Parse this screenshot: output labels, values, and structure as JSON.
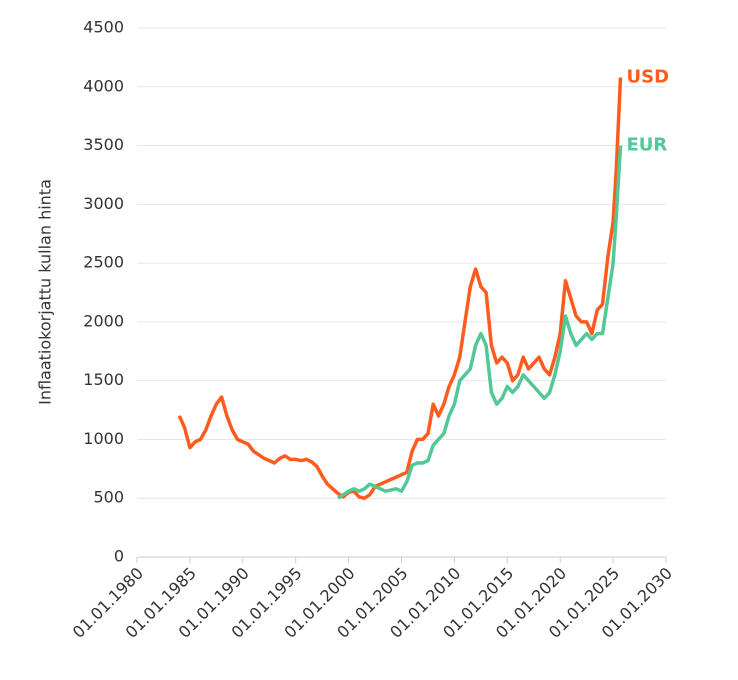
{
  "chart_data": {
    "type": "line",
    "y_label": "Inflaatiokorjattu kullan hinta",
    "x": [
      1984,
      1984.5,
      1985,
      1985.5,
      1986,
      1986.5,
      1987,
      1987.5,
      1988,
      1988.5,
      1989,
      1989.5,
      1990,
      1990.5,
      1991,
      1991.5,
      1992,
      1992.5,
      1993,
      1993.5,
      1994,
      1994.5,
      1995,
      1995.5,
      1996,
      1996.5,
      1997,
      1997.5,
      1998,
      1998.5,
      1999,
      1999.5,
      2000,
      2000.5,
      2001,
      2001.5,
      2002,
      2002.5,
      2003,
      2003.5,
      2004,
      2004.5,
      2005,
      2005.5,
      2006,
      2006.5,
      2007,
      2007.5,
      2008,
      2008.5,
      2009,
      2009.5,
      2010,
      2010.5,
      2011,
      2011.5,
      2012,
      2012.5,
      2013,
      2013.5,
      2014,
      2014.5,
      2015,
      2015.5,
      2016,
      2016.5,
      2017,
      2017.5,
      2018,
      2018.5,
      2019,
      2019.5,
      2020,
      2020.5,
      2021,
      2021.5,
      2022,
      2022.5,
      2023,
      2023.5,
      2024,
      2024.5,
      2025,
      2025.3,
      2025.7
    ],
    "series": [
      {
        "name": "USD",
        "color": "#ff5b1e",
        "values": [
          1200,
          1100,
          930,
          980,
          1000,
          1080,
          1200,
          1300,
          1360,
          1200,
          1080,
          1000,
          980,
          960,
          900,
          870,
          840,
          820,
          800,
          840,
          860,
          830,
          830,
          820,
          830,
          810,
          770,
          690,
          620,
          580,
          540,
          510,
          550,
          560,
          510,
          500,
          530,
          600,
          620,
          640,
          660,
          680,
          700,
          720,
          900,
          1000,
          1000,
          1050,
          1300,
          1200,
          1300,
          1450,
          1550,
          1700,
          2000,
          2300,
          2450,
          2300,
          2250,
          1800,
          1650,
          1700,
          1650,
          1500,
          1550,
          1700,
          1600,
          1650,
          1700,
          1600,
          1550,
          1700,
          1900,
          2350,
          2200,
          2050,
          2000,
          2000,
          1900,
          2100,
          2150,
          2550,
          2850,
          3300,
          4080
        ]
      },
      {
        "name": "EUR",
        "color": "#52c896",
        "values": [
          null,
          null,
          null,
          null,
          null,
          null,
          null,
          null,
          null,
          null,
          null,
          null,
          null,
          null,
          null,
          null,
          null,
          null,
          null,
          null,
          null,
          null,
          null,
          null,
          null,
          null,
          null,
          null,
          null,
          null,
          500,
          530,
          560,
          580,
          560,
          580,
          620,
          600,
          580,
          560,
          570,
          580,
          560,
          640,
          780,
          800,
          800,
          820,
          950,
          1000,
          1050,
          1200,
          1300,
          1500,
          1550,
          1600,
          1800,
          1900,
          1800,
          1400,
          1300,
          1350,
          1450,
          1400,
          1450,
          1550,
          1500,
          1450,
          1400,
          1350,
          1400,
          1550,
          1750,
          2050,
          1900,
          1800,
          1850,
          1900,
          1850,
          1900,
          1900,
          2200,
          2500,
          2900,
          3500
        ]
      }
    ],
    "xlim": [
      1980,
      2030
    ],
    "xticks": [
      {
        "value": 1980,
        "label": "01.01.1980"
      },
      {
        "value": 1985,
        "label": "01.01.1985"
      },
      {
        "value": 1990,
        "label": "01.01.1990"
      },
      {
        "value": 1995,
        "label": "01.01.1995"
      },
      {
        "value": 2000,
        "label": "01.01.2000"
      },
      {
        "value": 2005,
        "label": "01.01.2005"
      },
      {
        "value": 2010,
        "label": "01.01.2010"
      },
      {
        "value": 2015,
        "label": "01.01.2015"
      },
      {
        "value": 2020,
        "label": "01.01.2020"
      },
      {
        "value": 2025,
        "label": "01.01.2025"
      },
      {
        "value": 2030,
        "label": "01.01.2030"
      }
    ],
    "ylim": [
      0,
      4500
    ],
    "yticks": [
      0,
      500,
      1000,
      1500,
      2000,
      2500,
      3000,
      3500,
      4000,
      4500
    ],
    "grid": true
  }
}
